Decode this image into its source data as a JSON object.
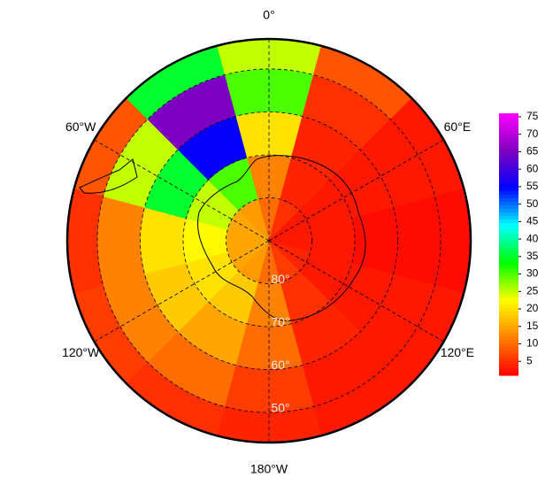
{
  "chart_data": {
    "type": "polar-heatmap",
    "lon_labels": [
      {
        "value": 0,
        "label": "0°"
      },
      {
        "value": 60,
        "label": "60°E"
      },
      {
        "value": 120,
        "label": "120°E"
      },
      {
        "value": 180,
        "label": "180°W"
      },
      {
        "value": 240,
        "label": "120°W"
      },
      {
        "value": 300,
        "label": "60°W"
      }
    ],
    "lat_labels": [
      {
        "value": 80,
        "label": "80°"
      },
      {
        "value": 70,
        "label": "70°"
      },
      {
        "value": 60,
        "label": "60°"
      },
      {
        "value": 50,
        "label": "50°"
      }
    ],
    "rlim": [
      90,
      43
    ],
    "lats": [
      85,
      75,
      65,
      55,
      45
    ],
    "lons": [
      0,
      30,
      60,
      90,
      120,
      150,
      180,
      210,
      240,
      270,
      300,
      330
    ],
    "field": [
      [
        10,
        5,
        3,
        3,
        4,
        6,
        10,
        14,
        15,
        15,
        15,
        14
      ],
      [
        12,
        4,
        3,
        3,
        3,
        5,
        12,
        18,
        20,
        22,
        25,
        30
      ],
      [
        20,
        4,
        3,
        2,
        3,
        4,
        10,
        15,
        18,
        20,
        35,
        55
      ],
      [
        30,
        5,
        3,
        2,
        3,
        3,
        6,
        10,
        12,
        12,
        25,
        65
      ],
      [
        25,
        8,
        3,
        2,
        3,
        3,
        4,
        5,
        6,
        5,
        8,
        35
      ]
    ],
    "clim": [
      1,
      76
    ],
    "colormap": [
      "#ff0000",
      "#ff8000",
      "#ffff00",
      "#00ff00",
      "#00ffff",
      "#0000ff",
      "#8000c0",
      "#ff00ff"
    ],
    "cticks": [
      5,
      10,
      15,
      20,
      25,
      30,
      35,
      40,
      45,
      50,
      55,
      60,
      65,
      70,
      75
    ]
  }
}
